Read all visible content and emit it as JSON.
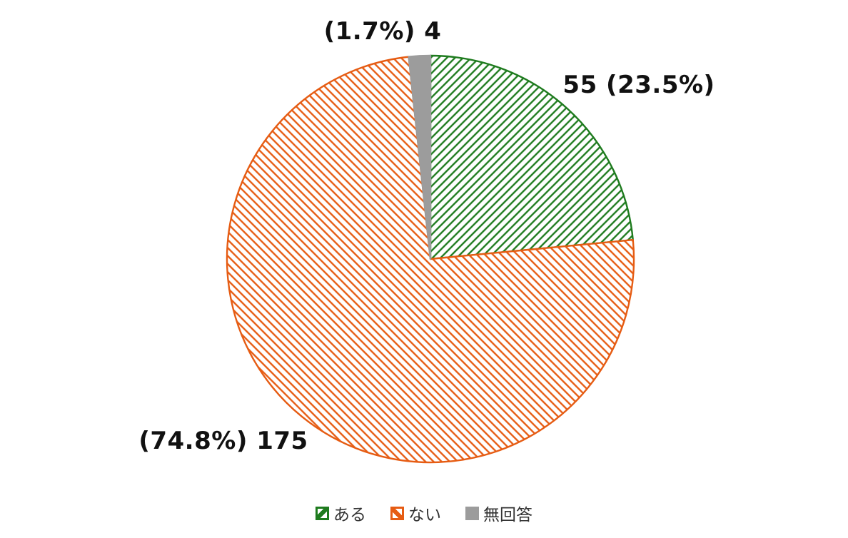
{
  "chart_data": {
    "type": "pie",
    "categories": [
      "ある",
      "ない",
      "無回答"
    ],
    "values": [
      55,
      175,
      4
    ],
    "percentages": [
      23.5,
      74.8,
      1.7
    ],
    "point_labels": [
      "55 (23.5%)",
      "(74.8%) 175",
      "(1.7%) 4"
    ],
    "colors": [
      "#1e7b1e",
      "#e65c13",
      "#9c9c9c"
    ],
    "hatches": [
      "forward-diagonal",
      "backward-diagonal",
      "solid"
    ],
    "start_angle_deg": 0,
    "direction": "clockwise",
    "legend_position": "bottom",
    "background_color": "#ffffff",
    "label_color": "#111111"
  }
}
